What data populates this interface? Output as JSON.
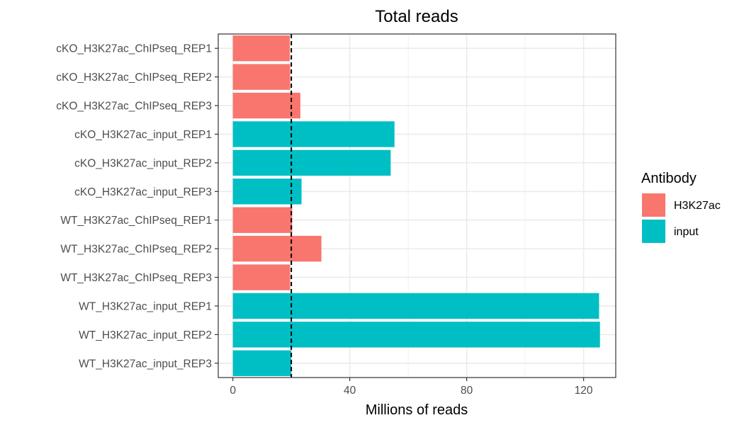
{
  "chart_data": {
    "type": "bar",
    "orientation": "horizontal",
    "title": "Total reads",
    "xlabel": "Millions of reads",
    "ylabel": "",
    "xlim": [
      -5,
      131
    ],
    "xticks": [
      0,
      40,
      80,
      120
    ],
    "grid": true,
    "reference_line": {
      "x": 20,
      "style": "dashed"
    },
    "legend": {
      "title": "Antibody",
      "position": "right",
      "entries": [
        {
          "name": "H3K27ac",
          "color": "#F8766D"
        },
        {
          "name": "input",
          "color": "#00BFC4"
        }
      ]
    },
    "categories": [
      "cKO_H3K27ac_ChIPseq_REP1",
      "cKO_H3K27ac_ChIPseq_REP2",
      "cKO_H3K27ac_ChIPseq_REP3",
      "cKO_H3K27ac_input_REP1",
      "cKO_H3K27ac_input_REP2",
      "cKO_H3K27ac_input_REP3",
      "WT_H3K27ac_ChIPseq_REP1",
      "WT_H3K27ac_ChIPseq_REP2",
      "WT_H3K27ac_ChIPseq_REP3",
      "WT_H3K27ac_input_REP1",
      "WT_H3K27ac_input_REP2",
      "WT_H3K27ac_input_REP3"
    ],
    "values": [
      19.5,
      19.6,
      23.1,
      55.3,
      54.0,
      23.5,
      20.3,
      30.3,
      19.6,
      125.3,
      125.6,
      20.0
    ],
    "groups": [
      "H3K27ac",
      "H3K27ac",
      "H3K27ac",
      "input",
      "input",
      "input",
      "H3K27ac",
      "H3K27ac",
      "H3K27ac",
      "input",
      "input",
      "input"
    ]
  }
}
